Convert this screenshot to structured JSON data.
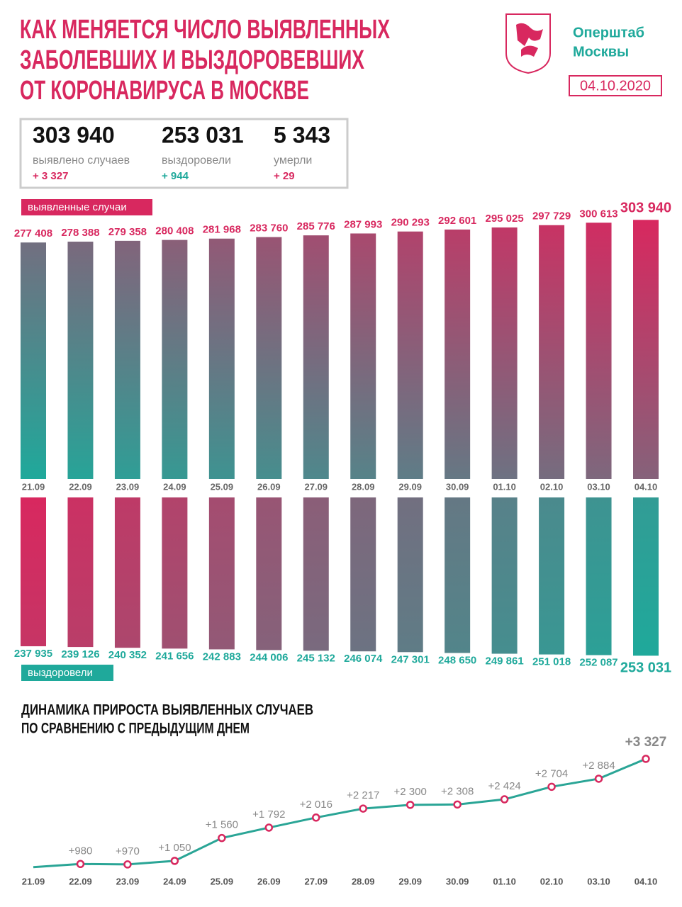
{
  "header": {
    "title": [
      "КАК МЕНЯЕТСЯ ЧИСЛО ВЫЯВЛЕННЫХ",
      "ЗАБОЛЕВШИХ И ВЫЗДОРОВЕВШИХ",
      "ОТ КОРОНАВИРУСА В МОСКВЕ"
    ],
    "logo": [
      "Оперштаб",
      "Москвы"
    ],
    "date": "04.10.2020"
  },
  "stats": [
    {
      "value": "303 940",
      "label": "выявлено случаев",
      "delta": "+ 3 327"
    },
    {
      "value": "253 031",
      "label": "выздоровели",
      "delta": "+ 944"
    },
    {
      "value": "5 343",
      "label": "умерли",
      "delta": "+ 29"
    }
  ],
  "chart_data": [
    {
      "type": "bar",
      "categories": [
        "21.09",
        "22.09",
        "23.09",
        "24.09",
        "25.09",
        "26.09",
        "27.09",
        "28.09",
        "29.09",
        "30.09",
        "01.10",
        "02.10",
        "03.10",
        "04.10"
      ],
      "series": [
        {
          "name": "выявленные случаи",
          "color": "#d8285f",
          "values": [
            277408,
            278388,
            279358,
            280408,
            281968,
            283760,
            285776,
            287993,
            290293,
            292601,
            295025,
            297729,
            300613,
            303940
          ],
          "value_labels": [
            "277 408",
            "278 388",
            "279 358",
            "280 408",
            "281 968",
            "283 760",
            "285 776",
            "287 993",
            "290 293",
            "292 601",
            "295 025",
            "297 729",
            "300 613",
            "303 940"
          ]
        }
      ],
      "colors": [
        "#1fa99b",
        "#d8285f"
      ],
      "ylim": [
        0,
        310000
      ]
    },
    {
      "type": "bar-down",
      "series": [
        {
          "name": "выздоровели",
          "color": "#1fa99b",
          "values": [
            237935,
            239126,
            240352,
            241656,
            242883,
            244006,
            245132,
            246074,
            247301,
            248650,
            249861,
            251018,
            252087,
            253031
          ],
          "value_labels": [
            "237 935",
            "239 126",
            "240 352",
            "241 656",
            "242 883",
            "244 006",
            "245 132",
            "246 074",
            "247 301",
            "248 650",
            "249 861",
            "251 018",
            "252 087",
            "253 031"
          ]
        }
      ],
      "colors": [
        "#d8285f",
        "#1fa99b"
      ],
      "ylim": [
        0,
        290000
      ]
    },
    {
      "type": "line",
      "title": [
        "ДИНАМИКА ПРИРОСТА ВЫЯВЛЕННЫХ СЛУЧАЕВ",
        "ПО СРАВНЕНИЮ С ПРЕДЫДУЩИМ ДНЕМ"
      ],
      "categories": [
        "21.09",
        "22.09",
        "23.09",
        "24.09",
        "25.09",
        "26.09",
        "27.09",
        "28.09",
        "29.09",
        "30.09",
        "01.10",
        "02.10",
        "03.10",
        "04.10"
      ],
      "values": [
        910,
        980,
        970,
        1050,
        1560,
        1792,
        2016,
        2217,
        2300,
        2308,
        2424,
        2704,
        2884,
        3327
      ],
      "value_labels": [
        null,
        "+980",
        "+970",
        "+1 050",
        "+1 560",
        "+1 792",
        "+2 016",
        "+2 217",
        "+2 300",
        "+2 308",
        "+2 424",
        "+2 704",
        "+2 884",
        "+3 327"
      ],
      "color": "#2aa596",
      "marker_color": "#d8285f",
      "ylim": [
        700,
        3500
      ]
    }
  ]
}
